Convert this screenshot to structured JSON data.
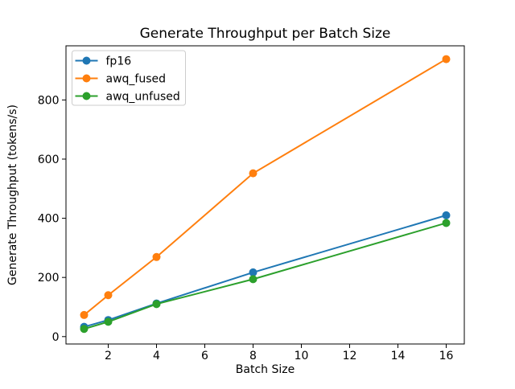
{
  "figure": {
    "background_color": "#ffffff"
  },
  "chart_data": {
    "type": "line",
    "title": "Generate Throughput per Batch Size",
    "xlabel": "Batch Size",
    "ylabel": "Generate Throughput (tokens/s)",
    "x": [
      1,
      2,
      4,
      8,
      16
    ],
    "series": [
      {
        "name": "fp16",
        "color": "#1f77b4",
        "values": [
          33,
          56,
          112,
          217,
          410
        ]
      },
      {
        "name": "awq_fused",
        "color": "#ff7f0e",
        "values": [
          73,
          140,
          269,
          552,
          938
        ]
      },
      {
        "name": "awq_unfused",
        "color": "#2ca02c",
        "values": [
          26,
          50,
          110,
          194,
          384
        ]
      }
    ],
    "xlim": [
      0.25,
      16.75
    ],
    "ylim": [
      -25,
      983
    ],
    "xticks": [
      2,
      4,
      6,
      8,
      10,
      12,
      14,
      16
    ],
    "yticks": [
      0,
      200,
      400,
      600,
      800
    ],
    "grid": false,
    "marker": "o",
    "legend_position": "upper left",
    "axis_color": "#000000",
    "legend_border_color": "#cccccc"
  }
}
